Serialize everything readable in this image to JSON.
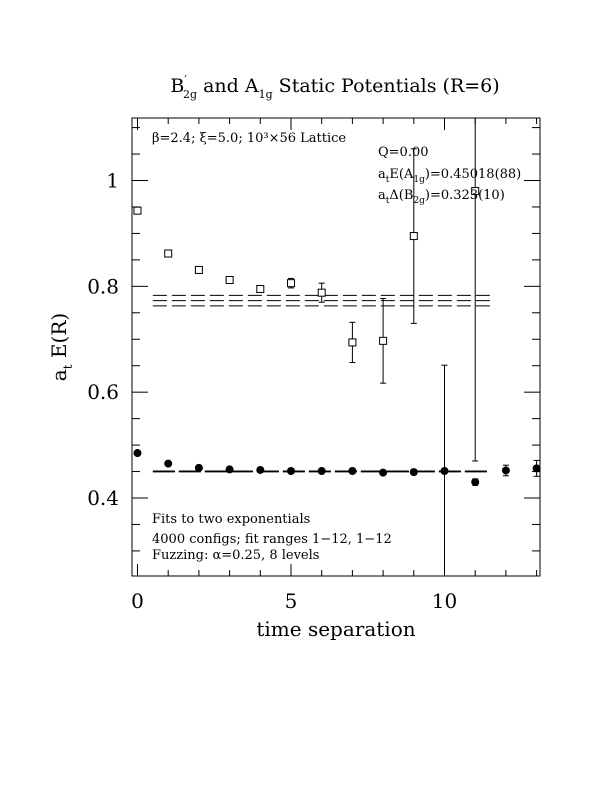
{
  "chart_data": {
    "type": "scatter",
    "title": "B′2g and A1g Static Potentials (R=6)",
    "title_parts": {
      "b": "B",
      "b_sub": "2g",
      "mid": " and A",
      "a_sub": "1g",
      "rest": " Static Potentials (R=6)"
    },
    "xlabel": "time separation",
    "ylabel": "a",
    "ylabel_sub": "t",
    "ylabel_rest": " E(R)",
    "xlim": [
      0,
      13
    ],
    "ylim": [
      0.25,
      1.12
    ],
    "x_ticks": [
      0,
      5,
      10
    ],
    "x_tick_labels": [
      "0",
      "5",
      "10"
    ],
    "y_ticks": [
      0.4,
      0.6,
      0.8,
      1.0
    ],
    "y_tick_labels": [
      "0.4",
      "0.6",
      "0.8",
      "1"
    ],
    "grid": false,
    "annotations": {
      "lattice": "β=2.4; ξ=5.0; 10³×56 Lattice",
      "q": "Q=0.00",
      "a1g_fit": "a",
      "a1g_fit_sub": "t",
      "a1g_fit_mid": "E(A",
      "a1g_fit_sub2": "1g",
      "a1g_fit_val": ")=0.45018(88)",
      "b2g_fit": "a",
      "b2g_fit_sub": "t",
      "b2g_fit_mid": "Δ(B",
      "b2g_fit_sub2": "2g",
      "b2g_fit_val": ")=0.323(10)",
      "fits": "Fits to two exponentials",
      "configs": "4000 configs; fit ranges 1−12, 1−12",
      "fuzzing": "Fuzzing: α=0.25, 8 levels"
    },
    "series": [
      {
        "marker": "open-square",
        "points": [
          {
            "x": 0,
            "y": 0.943,
            "err": 0.005
          },
          {
            "x": 1,
            "y": 0.862,
            "err": 0.004
          },
          {
            "x": 2,
            "y": 0.831,
            "err": 0.004
          },
          {
            "x": 3,
            "y": 0.812,
            "err": 0.005
          },
          {
            "x": 4,
            "y": 0.795,
            "err": 0.006
          },
          {
            "x": 5,
            "y": 0.806,
            "err": 0.009
          },
          {
            "x": 6,
            "y": 0.788,
            "err": 0.018
          },
          {
            "x": 7,
            "y": 0.694,
            "err": 0.038
          },
          {
            "x": 8,
            "y": 0.697,
            "err": 0.08
          },
          {
            "x": 9,
            "y": 0.895,
            "err": 0.165
          },
          {
            "x": 11,
            "y": 0.98,
            "err": 0.51
          }
        ],
        "fit_band": {
          "x_start": 0.5,
          "x_end": 11.5,
          "center": 0.773,
          "upper": 0.783,
          "lower": 0.763
        }
      },
      {
        "marker": "filled-circle",
        "points": [
          {
            "x": 0,
            "y": 0.485,
            "err": 0.002
          },
          {
            "x": 1,
            "y": 0.465,
            "err": 0.002
          },
          {
            "x": 2,
            "y": 0.457,
            "err": 0.002
          },
          {
            "x": 3,
            "y": 0.454,
            "err": 0.002
          },
          {
            "x": 4,
            "y": 0.453,
            "err": 0.002
          },
          {
            "x": 5,
            "y": 0.451,
            "err": 0.002
          },
          {
            "x": 6,
            "y": 0.451,
            "err": 0.003
          },
          {
            "x": 7,
            "y": 0.451,
            "err": 0.003
          },
          {
            "x": 8,
            "y": 0.448,
            "err": 0.004
          },
          {
            "x": 9,
            "y": 0.449,
            "err": 0.005
          },
          {
            "x": 10,
            "y": 0.451,
            "err": 0.2
          },
          {
            "x": 11,
            "y": 0.43,
            "err": 0.006
          },
          {
            "x": 12,
            "y": 0.452,
            "err": 0.01
          },
          {
            "x": 13,
            "y": 0.456,
            "err": 0.015
          }
        ],
        "fit_band": {
          "x_start": 0.5,
          "x_end": 11.5,
          "center": 0.4502,
          "upper": 0.4511,
          "lower": 0.4493
        }
      }
    ]
  }
}
